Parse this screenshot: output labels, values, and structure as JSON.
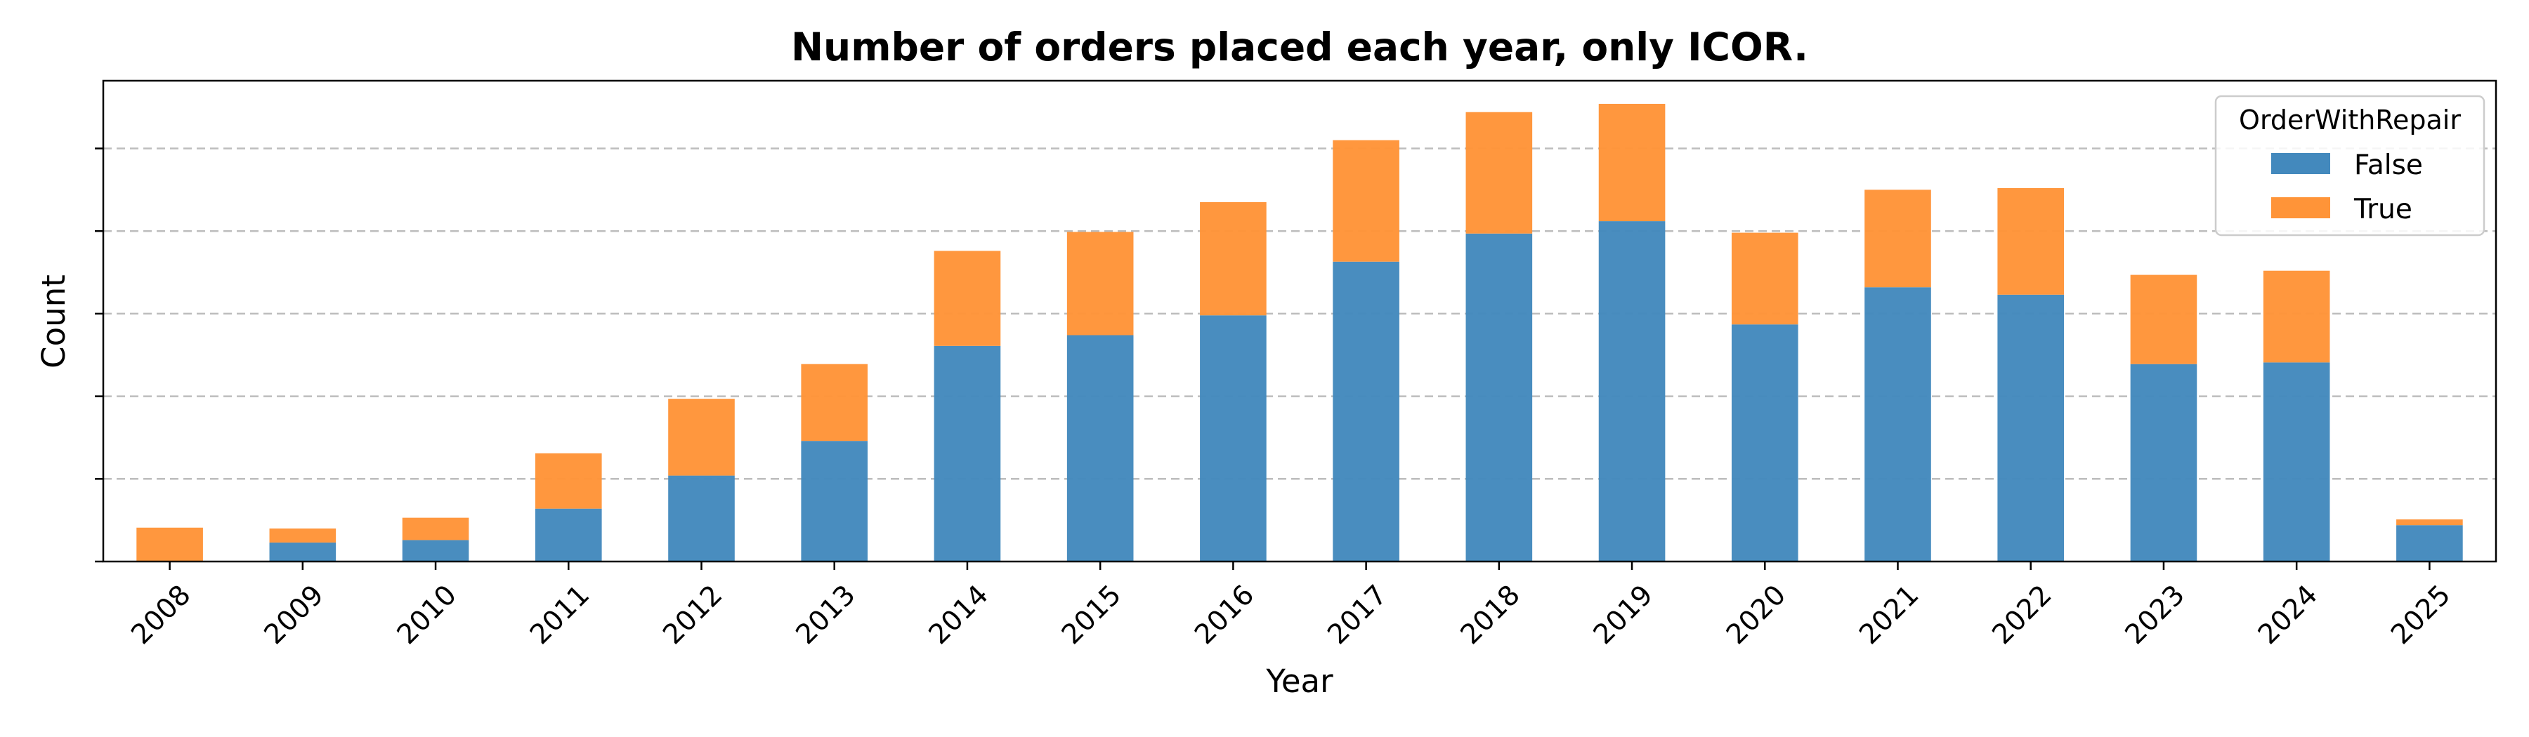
{
  "chart_data": {
    "type": "bar",
    "stacked": true,
    "title": "Number of orders placed each year, only ICOR.",
    "xlabel": "Year",
    "ylabel": "Count",
    "categories": [
      "2008",
      "2009",
      "2010",
      "2011",
      "2012",
      "2013",
      "2014",
      "2015",
      "2016",
      "2017",
      "2018",
      "2019",
      "2020",
      "2021",
      "2022",
      "2023",
      "2024",
      "2025"
    ],
    "series": [
      {
        "name": "False",
        "color": "#4389bd",
        "values": [
          0.0,
          0.23,
          0.26,
          0.64,
          1.04,
          1.46,
          2.61,
          2.74,
          2.98,
          3.63,
          3.97,
          4.12,
          2.87,
          3.32,
          3.23,
          2.39,
          2.41,
          0.44
        ]
      },
      {
        "name": "True",
        "color": "#ff9438",
        "values": [
          0.41,
          0.17,
          0.27,
          0.67,
          0.93,
          0.93,
          1.15,
          1.25,
          1.37,
          1.47,
          1.47,
          1.42,
          1.11,
          1.18,
          1.29,
          1.08,
          1.11,
          0.07
        ]
      }
    ],
    "ylim": [
      0,
      5.82
    ],
    "yticks": [
      0,
      1,
      2,
      3,
      4,
      5
    ],
    "y_tick_labels_shown": false,
    "grid": "y-dashed",
    "legend": {
      "title": "OrderWithRepair",
      "placement": "top-right"
    }
  }
}
